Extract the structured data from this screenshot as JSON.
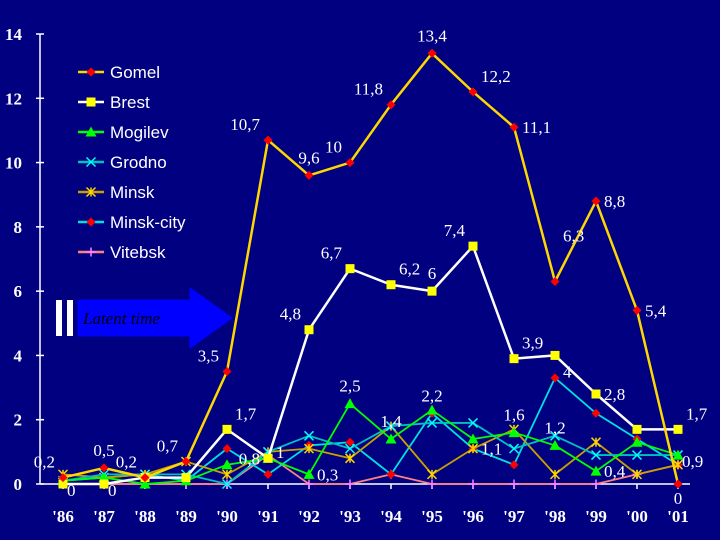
{
  "chart_data": {
    "type": "line",
    "title": "",
    "xlabel": "",
    "ylabel": "",
    "ylim": [
      0,
      14
    ],
    "yticks": [
      "0",
      "2",
      "4",
      "6",
      "8",
      "10",
      "12",
      "14"
    ],
    "categories": [
      "'86",
      "'87",
      "'88",
      "'89",
      "'90",
      "'91",
      "'92",
      "'93",
      "'94",
      "'95",
      "'96",
      "'97",
      "'98",
      "'99",
      "'00",
      "'01"
    ],
    "series": [
      {
        "name": "Gomel",
        "color": "#ffd700",
        "marker": "diamond",
        "marker_color": "#ff0000",
        "values": [
          0.2,
          0.5,
          0.2,
          0.7,
          3.5,
          10.7,
          9.6,
          10,
          11.8,
          13.4,
          12.2,
          11.1,
          6.3,
          8.8,
          5.4,
          0
        ]
      },
      {
        "name": "Brest",
        "color": "#ffffff",
        "marker": "square",
        "marker_color": "#ffff00",
        "values": [
          0,
          0,
          0.2,
          0.2,
          1.7,
          0.8,
          4.8,
          6.7,
          6.2,
          6,
          7.4,
          3.9,
          4,
          2.8,
          1.7,
          1.7
        ]
      },
      {
        "name": "Mogilev",
        "color": "#00ff00",
        "marker": "triangle",
        "marker_color": "#00ff00",
        "values": [
          0.1,
          0.2,
          0,
          0.1,
          0.6,
          0.8,
          0.3,
          2.5,
          1.4,
          2.3,
          1.4,
          1.6,
          1.2,
          0.4,
          1.3,
          0.9
        ]
      },
      {
        "name": "Grodno",
        "color": "#00c0c0",
        "marker": "x",
        "marker_color": "#00ffff",
        "values": [
          0.1,
          0.3,
          0.3,
          0.3,
          0,
          1,
          1.5,
          1.1,
          1.8,
          1.9,
          1.9,
          1.1,
          1.5,
          0.9,
          0.9,
          0.9
        ]
      },
      {
        "name": "Minsk",
        "color": "#c8a000",
        "marker": "star",
        "marker_color": "#ffd700",
        "values": [
          0.3,
          0.2,
          0.3,
          0.7,
          0.3,
          1,
          1.1,
          0.8,
          1.8,
          0.3,
          1.1,
          1.7,
          0.3,
          1.3,
          0.3,
          0.6
        ]
      },
      {
        "name": "Minsk-city",
        "color": "#00e0e0",
        "marker": "diamond",
        "marker_color": "#ff0000",
        "values": [
          0.1,
          0.2,
          0.3,
          0.1,
          1.1,
          0.3,
          1.2,
          1.3,
          0.3,
          2.2,
          1.1,
          0.6,
          3.3,
          2.2,
          1.4,
          0.6
        ]
      },
      {
        "name": "Vitebsk",
        "color": "#ff8080",
        "marker": "plus",
        "marker_color": "#ff80ff",
        "values": [
          0,
          0,
          0,
          0,
          0,
          0.9,
          0,
          0,
          0.3,
          0,
          0,
          0,
          0,
          0,
          0.3,
          0.6
        ]
      }
    ],
    "data_labels": [
      {
        "text": "13,4",
        "series": "Gomel",
        "index": 9,
        "pos": "above"
      },
      {
        "text": "12,2",
        "series": "Gomel",
        "index": 10,
        "pos": "above-right"
      },
      {
        "text": "11,8",
        "series": "Gomel",
        "index": 8,
        "pos": "above-left"
      },
      {
        "text": "10,7",
        "series": "Gomel",
        "index": 5,
        "pos": "above-left"
      },
      {
        "text": "10",
        "series": "Gomel",
        "index": 7,
        "pos": "above-left"
      },
      {
        "text": "9,6",
        "series": "Gomel",
        "index": 6,
        "pos": "above"
      },
      {
        "text": "11,1",
        "series": "Gomel",
        "index": 11,
        "pos": "right"
      },
      {
        "text": "8,8",
        "series": "Gomel",
        "index": 13,
        "pos": "right"
      },
      {
        "text": "6,3",
        "series": "Gomel",
        "index": 12,
        "pos": "above-right-high"
      },
      {
        "text": "5,4",
        "series": "Gomel",
        "index": 14,
        "pos": "right"
      },
      {
        "text": "3,5",
        "series": "Gomel",
        "index": 4,
        "pos": "above-left"
      },
      {
        "text": "0,7",
        "series": "Gomel",
        "index": 3,
        "pos": "above-left"
      },
      {
        "text": "0,5",
        "series": "Gomel",
        "index": 1,
        "pos": "above"
      },
      {
        "text": "0,2",
        "series": "Gomel",
        "index": 0,
        "pos": "above-left"
      },
      {
        "text": "0,2",
        "series": "Gomel",
        "index": 2,
        "pos": "above-left"
      },
      {
        "text": "0",
        "series": "Gomel",
        "index": 15,
        "pos": "below"
      },
      {
        "text": "7,4",
        "series": "Brest",
        "index": 10,
        "pos": "above-left"
      },
      {
        "text": "6,7",
        "series": "Brest",
        "index": 7,
        "pos": "above-left"
      },
      {
        "text": "6,2",
        "series": "Brest",
        "index": 8,
        "pos": "above-right"
      },
      {
        "text": "6",
        "series": "Brest",
        "index": 9,
        "pos": "above"
      },
      {
        "text": "4,8",
        "series": "Brest",
        "index": 6,
        "pos": "above-left"
      },
      {
        "text": "3,9",
        "series": "Brest",
        "index": 11,
        "pos": "above-right"
      },
      {
        "text": "4",
        "series": "Brest",
        "index": 12,
        "pos": "right-low"
      },
      {
        "text": "2,8",
        "series": "Brest",
        "index": 13,
        "pos": "right"
      },
      {
        "text": "1,7",
        "series": "Brest",
        "index": 4,
        "pos": "above-right"
      },
      {
        "text": "0,8",
        "series": "Brest",
        "index": 5,
        "pos": "left"
      },
      {
        "text": "1,7",
        "series": "Brest",
        "index": 15,
        "pos": "above-right"
      },
      {
        "text": "0",
        "series": "Brest",
        "index": 0,
        "pos": "below-right"
      },
      {
        "text": "0",
        "series": "Brest",
        "index": 1,
        "pos": "below-right"
      },
      {
        "text": "2,5",
        "series": "Mogilev",
        "index": 7,
        "pos": "above"
      },
      {
        "text": "2,2",
        "series": "Minsk-city",
        "index": 9,
        "pos": "above"
      },
      {
        "text": "1,4",
        "series": "Mogilev",
        "index": 8,
        "pos": "above"
      },
      {
        "text": "1,6",
        "series": "Mogilev",
        "index": 11,
        "pos": "above"
      },
      {
        "text": "1,2",
        "series": "Mogilev",
        "index": 12,
        "pos": "above"
      },
      {
        "text": "1,1",
        "series": "Minsk",
        "index": 10,
        "pos": "right"
      },
      {
        "text": "0,3",
        "series": "Mogilev",
        "index": 6,
        "pos": "right"
      },
      {
        "text": "1",
        "series": "Minsk",
        "index": 5,
        "pos": "right"
      },
      {
        "text": "0,4",
        "series": "Mogilev",
        "index": 13,
        "pos": "right"
      },
      {
        "text": "0,9",
        "series": "Mogilev",
        "index": 15,
        "pos": "below-right"
      }
    ],
    "legend": {
      "position": "top-left",
      "entries": [
        "Gomel",
        "Brest",
        "Mogilev",
        "Grodno",
        "Minsk",
        "Minsk-city",
        "Vitebsk"
      ]
    },
    "grid": false
  },
  "annotation": {
    "label": "Latent time",
    "shape": "arrow",
    "color": "#0000ff",
    "text_color": "#000000"
  }
}
